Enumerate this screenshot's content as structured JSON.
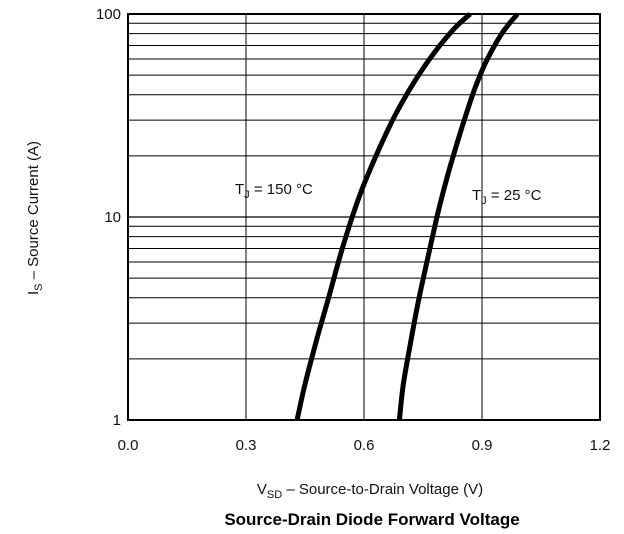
{
  "chart_data": {
    "type": "line",
    "title": "Source-Drain Diode Forward Voltage",
    "xlabel": {
      "symbol": "V",
      "subscript": "SD",
      "text": " – Source-to-Drain Voltage (V)"
    },
    "ylabel": {
      "symbol": "I",
      "subscript": "S",
      "text": " – Source Current (A)"
    },
    "xlim": [
      0.0,
      1.2
    ],
    "ylim": [
      1,
      100
    ],
    "yscale": "log",
    "grid": true,
    "x_ticks": [
      "0.0",
      "0.3",
      "0.6",
      "0.9",
      "1.2"
    ],
    "y_ticks": [
      "1",
      "10",
      "100"
    ],
    "series": [
      {
        "name": "T_J = 150 °C",
        "label_parts": {
          "symbol": "T",
          "subscript": "J",
          "text": " = 150 °C"
        },
        "x": [
          0.43,
          0.45,
          0.48,
          0.51,
          0.54,
          0.57,
          0.6,
          0.64,
          0.68,
          0.73,
          0.78,
          0.83,
          0.87
        ],
        "y": [
          1,
          1.5,
          2.5,
          4,
          6.5,
          10,
          14.5,
          22,
          32,
          47,
          65,
          85,
          100
        ]
      },
      {
        "name": "T_J = 25 °C",
        "label_parts": {
          "symbol": "T",
          "subscript": "J",
          "text": " = 25 °C"
        },
        "x": [
          0.69,
          0.7,
          0.72,
          0.74,
          0.76,
          0.78,
          0.8,
          0.82,
          0.85,
          0.88,
          0.91,
          0.95,
          0.99
        ],
        "y": [
          1,
          1.5,
          2.5,
          4,
          6,
          9,
          13,
          18,
          28,
          42,
          58,
          80,
          100
        ]
      }
    ]
  }
}
